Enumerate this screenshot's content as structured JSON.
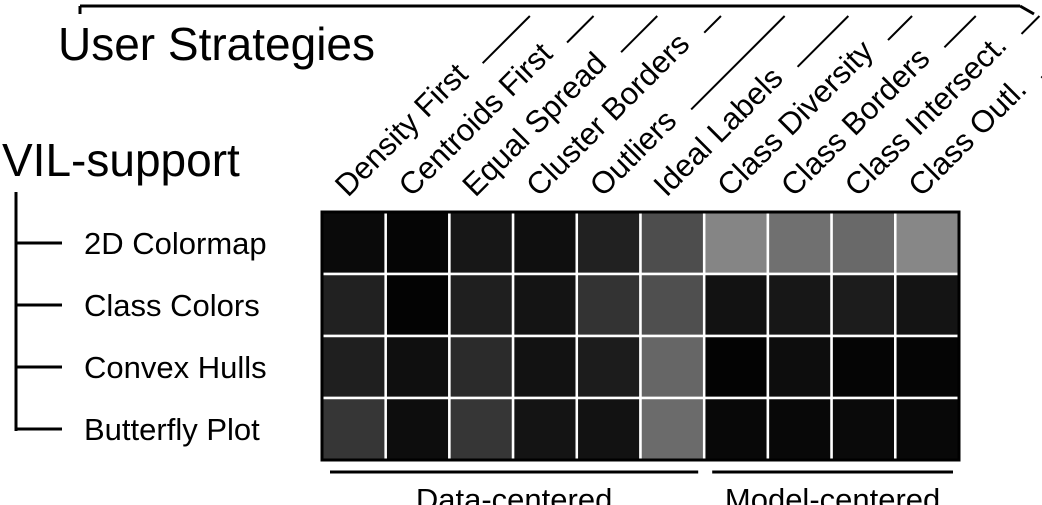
{
  "chart_data": {
    "type": "heatmap",
    "title": "User Strategies",
    "row_header": "VIL-support",
    "columns": [
      "Density  First",
      "Centroids First",
      "Equal Spread",
      "Cluster Borders",
      "Outliers",
      "Ideal Labels",
      "Class Diversity",
      "Class Borders",
      "Class Intersect.",
      "Class Outl."
    ],
    "rows": [
      "2D Colormap",
      "Class Colors",
      "Convex Hulls",
      "Butterfly Plot"
    ],
    "groups": [
      {
        "label": "Data-centered",
        "columns": [
          0,
          5
        ]
      },
      {
        "label": "Model-centered",
        "columns": [
          6,
          9
        ]
      }
    ],
    "values": [
      [
        0.04,
        0.02,
        0.09,
        0.06,
        0.13,
        0.3,
        0.52,
        0.44,
        0.41,
        0.53
      ],
      [
        0.13,
        0.01,
        0.12,
        0.08,
        0.2,
        0.31,
        0.07,
        0.09,
        0.11,
        0.08
      ],
      [
        0.12,
        0.06,
        0.17,
        0.07,
        0.11,
        0.4,
        0.01,
        0.05,
        0.02,
        0.02
      ],
      [
        0.21,
        0.05,
        0.21,
        0.08,
        0.07,
        0.42,
        0.03,
        0.03,
        0.04,
        0.03
      ]
    ],
    "value_range": [
      0,
      1
    ],
    "colorscale": {
      "low": "#000000",
      "high": "#ffffff"
    }
  }
}
